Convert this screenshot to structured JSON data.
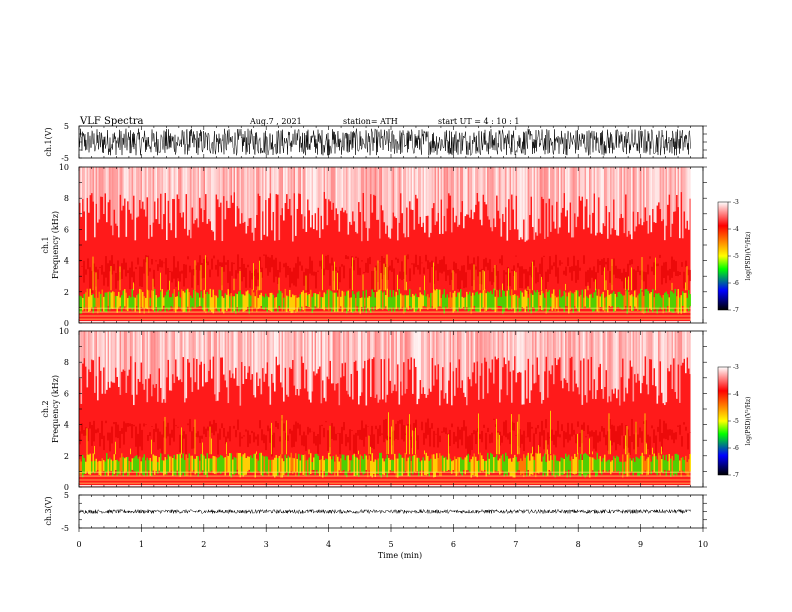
{
  "header": {
    "title": "VLF  Spectra",
    "date": "Aug.7  , 2021",
    "station": "station= ATH",
    "start": "start  UT  =   4  : 10 : 1"
  },
  "chart_data": [
    {
      "type": "line",
      "panel": "ch1-waveform",
      "ylabel": "ch.1(V)",
      "yticks": [
        "5",
        "-5"
      ],
      "ylim": [
        -5,
        5
      ],
      "xlim": [
        0,
        10
      ],
      "data_extent_x": [
        0,
        9.8
      ],
      "amplitude_range": [
        -4.2,
        4.2
      ],
      "color": "#000000"
    },
    {
      "type": "heatmap",
      "panel": "ch1-spectrogram",
      "ylabel": "Frequency (kHz)",
      "channel_label": "ch.1",
      "yticks": [
        "0",
        "2",
        "4",
        "6",
        "8",
        "10"
      ],
      "ylim": [
        0,
        10
      ],
      "xlim": [
        0,
        10
      ],
      "data_extent_x": [
        0,
        9.8
      ],
      "colorbar": {
        "label": "log(PSD)(V²/Hz)",
        "ticks": [
          "-3",
          "-4",
          "-5",
          "-6",
          "-7"
        ],
        "range": [
          -7,
          -3
        ]
      }
    },
    {
      "type": "heatmap",
      "panel": "ch2-spectrogram",
      "ylabel": "Frequency (kHz)",
      "channel_label": "ch.2",
      "yticks": [
        "0",
        "2",
        "4",
        "6",
        "8",
        "10"
      ],
      "ylim": [
        0,
        10
      ],
      "xlim": [
        0,
        10
      ],
      "data_extent_x": [
        0,
        9.8
      ],
      "colorbar": {
        "label": "log(PSD)(V²/Hz)",
        "ticks": [
          "-3",
          "-4",
          "-5",
          "-6",
          "-7"
        ],
        "range": [
          -7,
          -3
        ]
      }
    },
    {
      "type": "line",
      "panel": "ch3-waveform",
      "ylabel": "ch.3(V)",
      "yticks": [
        "5",
        "-5"
      ],
      "ylim": [
        -5,
        5
      ],
      "xlim": [
        0,
        10
      ],
      "data_extent_x": [
        0,
        9.8
      ],
      "amplitude_range": [
        -0.6,
        0.6
      ],
      "color": "#000000"
    }
  ],
  "x_axis": {
    "label": "Time  (min)",
    "ticks": [
      "0",
      "1",
      "2",
      "3",
      "4",
      "5",
      "6",
      "7",
      "8",
      "9",
      "10"
    ]
  },
  "colormap": [
    "#ffffff",
    "#ff0000",
    "#ffff00",
    "#00ff00",
    "#0000ff",
    "#000000"
  ]
}
